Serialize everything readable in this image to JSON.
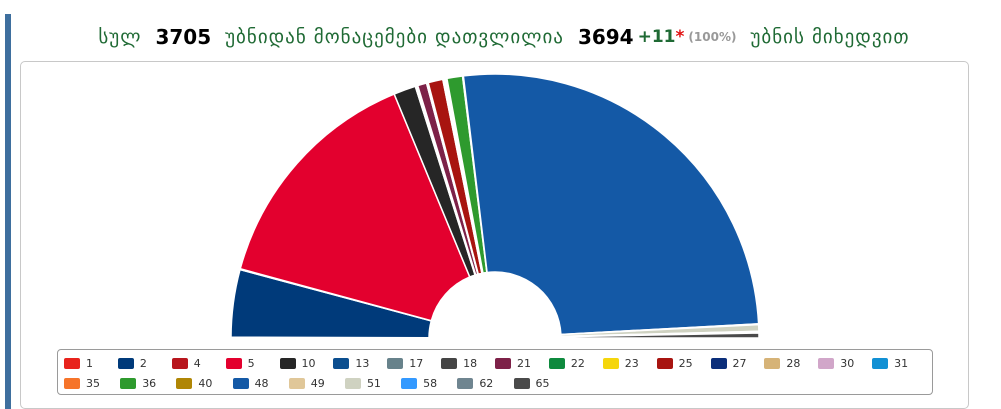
{
  "header": {
    "total_label": "სულ",
    "total_value": "3705",
    "counted_label": "უბნიდან მონაცემები დათვლილია",
    "counted_value": "3694",
    "extra": "+11",
    "star": "*",
    "percent": "(100%)",
    "suffix": "უბნის მიხედვით"
  },
  "chart_data": {
    "type": "pie",
    "subtype": "semicircle-parliament",
    "slices": [
      {
        "name": "1",
        "value": 0.1,
        "color": "#e8231c"
      },
      {
        "name": "2",
        "value": 8.2,
        "color": "#003a7a"
      },
      {
        "name": "4",
        "value": 0.1,
        "color": "#b8161d"
      },
      {
        "name": "5",
        "value": 28.9,
        "color": "#e3002e"
      },
      {
        "name": "10",
        "value": 2.7,
        "color": "#262626"
      },
      {
        "name": "13",
        "value": 0.1,
        "color": "#0b4e8f"
      },
      {
        "name": "17",
        "value": 0.1,
        "color": "#67828b"
      },
      {
        "name": "18",
        "value": 0.1,
        "color": "#454545"
      },
      {
        "name": "21",
        "value": 1.1,
        "color": "#7d2148"
      },
      {
        "name": "22",
        "value": 0.1,
        "color": "#0e8a3e"
      },
      {
        "name": "23",
        "value": 0.1,
        "color": "#f5d60c"
      },
      {
        "name": "25",
        "value": 1.8,
        "color": "#a81410"
      },
      {
        "name": "27",
        "value": 0.1,
        "color": "#0b2e7a"
      },
      {
        "name": "28",
        "value": 0.1,
        "color": "#d6b377"
      },
      {
        "name": "30",
        "value": 0.1,
        "color": "#d1a6c9"
      },
      {
        "name": "31",
        "value": 0.1,
        "color": "#1190d4"
      },
      {
        "name": "35",
        "value": 0.1,
        "color": "#f6742a"
      },
      {
        "name": "36",
        "value": 1.9,
        "color": "#2e9a2e"
      },
      {
        "name": "40",
        "value": 0.1,
        "color": "#b08605"
      },
      {
        "name": "48",
        "value": 51.8,
        "color": "#1459a6"
      },
      {
        "name": "49",
        "value": 0.1,
        "color": "#e0c799"
      },
      {
        "name": "51",
        "value": 0.8,
        "color": "#cfd2c1"
      },
      {
        "name": "58",
        "value": 0.1,
        "color": "#3399ff"
      },
      {
        "name": "62",
        "value": 0.1,
        "color": "#6f8590"
      },
      {
        "name": "65",
        "value": 0.6,
        "color": "#4a4a4a"
      }
    ],
    "legend": {
      "rows": [
        [
          "1",
          "2",
          "4",
          "5",
          "10",
          "13",
          "17",
          "18",
          "21",
          "22",
          "23",
          "25",
          "27",
          "28",
          "30",
          "31"
        ],
        [
          "35",
          "36",
          "40",
          "48",
          "49",
          "51",
          "58",
          "62",
          "65"
        ]
      ],
      "placement": "bottom"
    }
  }
}
